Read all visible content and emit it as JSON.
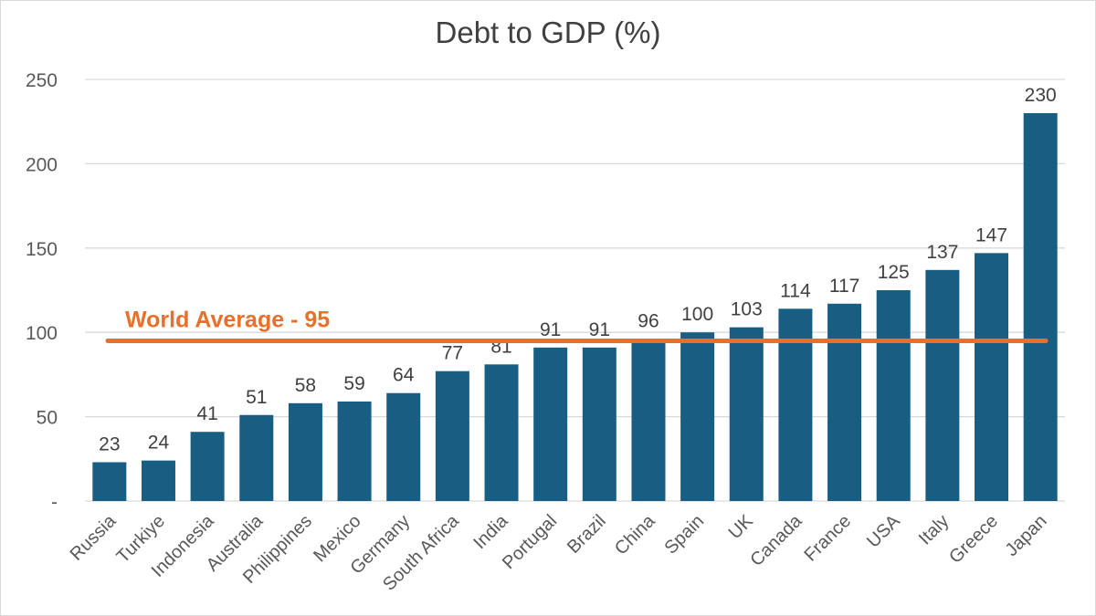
{
  "chart_data": {
    "type": "bar",
    "title": "Debt to GDP (%)",
    "categories": [
      "Russia",
      "Turkiye",
      "Indonesia",
      "Australia",
      "Philippines",
      "Mexico",
      "Germany",
      "South Africa",
      "India",
      "Portugal",
      "Brazil",
      "China",
      "Spain",
      "UK",
      "Canada",
      "France",
      "USA",
      "Italy",
      "Greece",
      "Japan"
    ],
    "values": [
      23,
      24,
      41,
      51,
      58,
      59,
      64,
      77,
      81,
      91,
      91,
      96,
      100,
      103,
      114,
      117,
      125,
      137,
      147,
      230
    ],
    "ylim": [
      0,
      250
    ],
    "yticks": [
      0,
      50,
      100,
      150,
      200,
      250
    ],
    "ytick_labels": [
      "-",
      "50",
      "100",
      "150",
      "200",
      "250"
    ],
    "grid": true,
    "bar_color": "#175e82",
    "reference_line": {
      "label": "World Average - 95",
      "value": 95,
      "color": "#e8702a"
    }
  }
}
